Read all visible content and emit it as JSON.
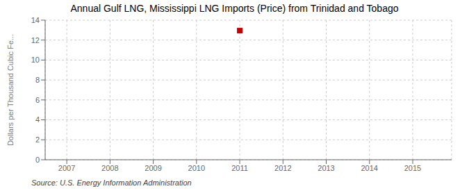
{
  "chart_data": {
    "type": "scatter",
    "title": "Annual Gulf LNG, Mississippi LNG Imports (Price) from Trinidad and Tobago",
    "ylabel": "Dollars per Thousand Cubic Fe...",
    "annotations": [
      "Source: U.S. Energy Information Administration"
    ],
    "x": [
      2011
    ],
    "values": [
      12.95
    ],
    "color": "#cc0000",
    "marker": "square",
    "xlim": [
      2006.5,
      2015.9
    ],
    "xticks": [
      2007,
      2008,
      2009,
      2010,
      2011,
      2012,
      2013,
      2014,
      2015
    ],
    "ylim": [
      0,
      14
    ],
    "yticks": [
      0,
      2,
      4,
      6,
      8,
      10,
      12,
      14
    ],
    "grid": true
  }
}
